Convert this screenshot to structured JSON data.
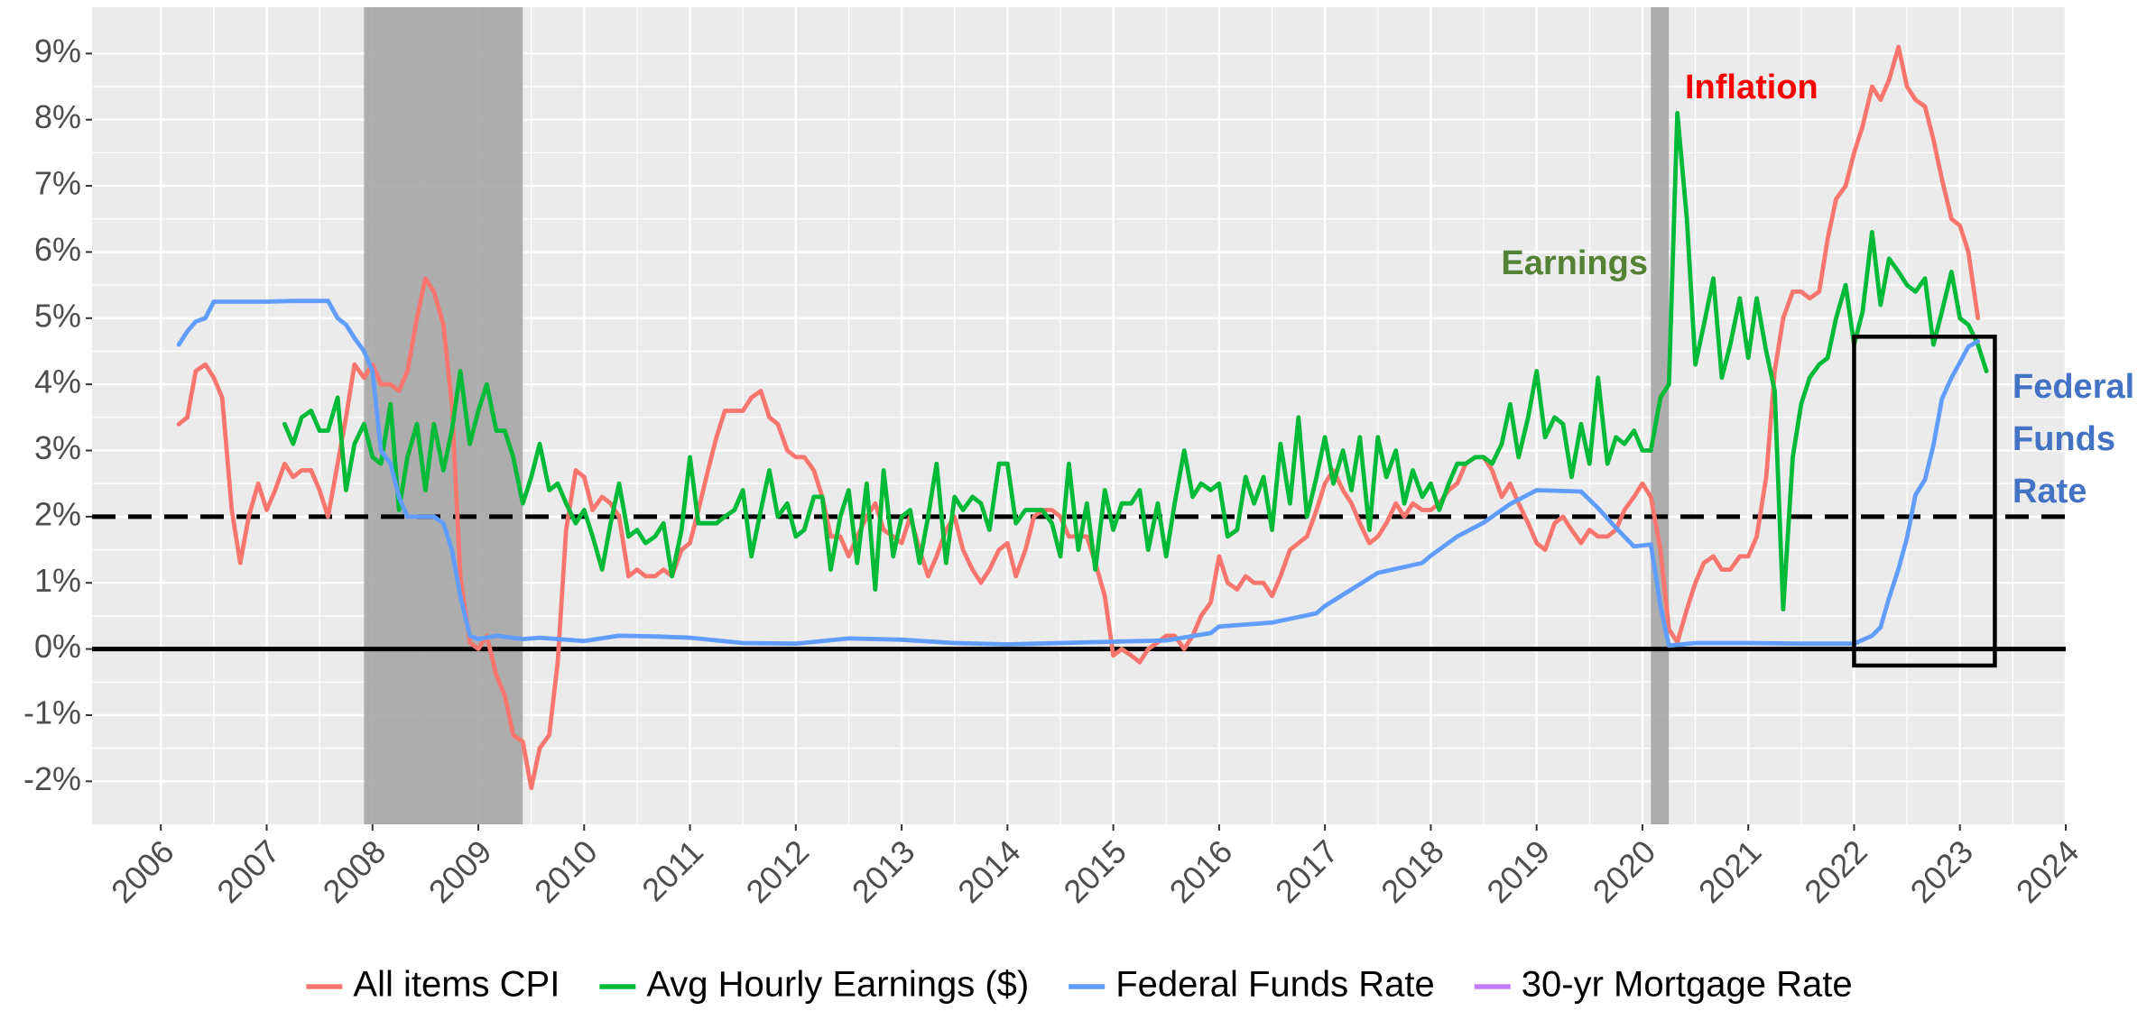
{
  "chart_data": {
    "type": "line",
    "xlim": [
      2005.35,
      2024.0
    ],
    "ylim": [
      -2.65,
      9.7
    ],
    "xticks": [
      2006,
      2007,
      2008,
      2009,
      2010,
      2011,
      2012,
      2013,
      2014,
      2015,
      2016,
      2017,
      2018,
      2019,
      2020,
      2021,
      2022,
      2023,
      2024
    ],
    "yticks": [
      {
        "value": -2,
        "label": "-2%"
      },
      {
        "value": -1,
        "label": "-1%"
      },
      {
        "value": 0,
        "label": "0%"
      },
      {
        "value": 1,
        "label": "1%"
      },
      {
        "value": 2,
        "label": "2%"
      },
      {
        "value": 3,
        "label": "3%"
      },
      {
        "value": 4,
        "label": "4%"
      },
      {
        "value": 5,
        "label": "5%"
      },
      {
        "value": 6,
        "label": "6%"
      },
      {
        "value": 7,
        "label": "7%"
      },
      {
        "value": 8,
        "label": "8%"
      },
      {
        "value": 9,
        "label": "9%"
      }
    ],
    "grid": true,
    "legend": "bottom",
    "shaded_periods": [
      [
        2007.92,
        2009.42
      ],
      [
        2020.08,
        2020.25
      ]
    ],
    "reference_lines": [
      {
        "value": 2,
        "style": "dashed"
      },
      {
        "value": 0,
        "style": "solid"
      }
    ],
    "highlight_box": {
      "xlim": [
        2022.0,
        2023.33
      ],
      "ylim": [
        -0.25,
        4.72
      ]
    },
    "annotations": [
      {
        "lines": [
          "Inflation"
        ],
        "color": "#FF0000"
      },
      {
        "lines": [
          "Earnings"
        ],
        "color": "#548235"
      },
      {
        "lines": [
          "Federal",
          "Funds",
          "Rate"
        ],
        "color": "#4472C4"
      }
    ],
    "series": [
      {
        "name": "All items CPI",
        "color": "#F8766D",
        "x": [
          2006.17,
          2006.25,
          2006.33,
          2006.42,
          2006.5,
          2006.58,
          2006.67,
          2006.75,
          2006.83,
          2006.92,
          2007.0,
          2007.08,
          2007.17,
          2007.25,
          2007.33,
          2007.42,
          2007.5,
          2007.58,
          2007.67,
          2007.75,
          2007.83,
          2007.92,
          2008.0,
          2008.08,
          2008.17,
          2008.25,
          2008.33,
          2008.42,
          2008.5,
          2008.58,
          2008.67,
          2008.75,
          2008.83,
          2008.92,
          2009.0,
          2009.08,
          2009.17,
          2009.25,
          2009.33,
          2009.42,
          2009.5,
          2009.58,
          2009.67,
          2009.75,
          2009.83,
          2009.92,
          2010.0,
          2010.08,
          2010.17,
          2010.25,
          2010.33,
          2010.42,
          2010.5,
          2010.58,
          2010.67,
          2010.75,
          2010.83,
          2010.92,
          2011.0,
          2011.08,
          2011.17,
          2011.25,
          2011.33,
          2011.42,
          2011.5,
          2011.58,
          2011.67,
          2011.75,
          2011.83,
          2011.92,
          2012.0,
          2012.08,
          2012.17,
          2012.25,
          2012.33,
          2012.42,
          2012.5,
          2012.58,
          2012.67,
          2012.75,
          2012.83,
          2012.92,
          2013.0,
          2013.08,
          2013.17,
          2013.25,
          2013.33,
          2013.42,
          2013.5,
          2013.58,
          2013.67,
          2013.75,
          2013.83,
          2013.92,
          2014.0,
          2014.08,
          2014.17,
          2014.25,
          2014.33,
          2014.42,
          2014.5,
          2014.58,
          2014.67,
          2014.75,
          2014.83,
          2014.92,
          2015.0,
          2015.08,
          2015.17,
          2015.25,
          2015.33,
          2015.42,
          2015.5,
          2015.58,
          2015.67,
          2015.75,
          2015.83,
          2015.92,
          2016.0,
          2016.08,
          2016.17,
          2016.25,
          2016.33,
          2016.42,
          2016.5,
          2016.58,
          2016.67,
          2016.75,
          2016.83,
          2016.92,
          2017.0,
          2017.08,
          2017.17,
          2017.25,
          2017.33,
          2017.42,
          2017.5,
          2017.58,
          2017.67,
          2017.75,
          2017.83,
          2017.92,
          2018.0,
          2018.08,
          2018.17,
          2018.25,
          2018.33,
          2018.42,
          2018.5,
          2018.58,
          2018.67,
          2018.75,
          2018.83,
          2018.92,
          2019.0,
          2019.08,
          2019.17,
          2019.25,
          2019.33,
          2019.42,
          2019.5,
          2019.58,
          2019.67,
          2019.75,
          2019.83,
          2019.92,
          2020.0,
          2020.08,
          2020.17,
          2020.25,
          2020.33,
          2020.42,
          2020.5,
          2020.58,
          2020.67,
          2020.75,
          2020.83,
          2020.92,
          2021.0,
          2021.08,
          2021.17,
          2021.25,
          2021.33,
          2021.42,
          2021.5,
          2021.58,
          2021.67,
          2021.75,
          2021.83,
          2021.92,
          2022.0,
          2022.08,
          2022.17,
          2022.25,
          2022.33,
          2022.42,
          2022.5,
          2022.58,
          2022.67,
          2022.75,
          2022.83,
          2022.92,
          2023.0,
          2023.08,
          2023.17
        ],
        "values": [
          3.4,
          3.5,
          4.2,
          4.3,
          4.1,
          3.8,
          2.1,
          1.3,
          2.0,
          2.5,
          2.1,
          2.4,
          2.8,
          2.6,
          2.7,
          2.7,
          2.4,
          2.0,
          2.8,
          3.5,
          4.3,
          4.1,
          4.3,
          4.0,
          4.0,
          3.9,
          4.2,
          5.0,
          5.6,
          5.4,
          4.9,
          3.7,
          1.1,
          0.1,
          0.0,
          0.2,
          -0.4,
          -0.7,
          -1.3,
          -1.4,
          -2.1,
          -1.5,
          -1.3,
          -0.2,
          1.8,
          2.7,
          2.6,
          2.1,
          2.3,
          2.2,
          2.0,
          1.1,
          1.2,
          1.1,
          1.1,
          1.2,
          1.1,
          1.5,
          1.6,
          2.1,
          2.7,
          3.2,
          3.6,
          3.6,
          3.6,
          3.8,
          3.9,
          3.5,
          3.4,
          3.0,
          2.9,
          2.9,
          2.7,
          2.3,
          1.7,
          1.7,
          1.4,
          1.7,
          2.0,
          2.2,
          1.8,
          1.7,
          1.6,
          2.0,
          1.5,
          1.1,
          1.4,
          1.8,
          2.0,
          1.5,
          1.2,
          1.0,
          1.2,
          1.5,
          1.6,
          1.1,
          1.5,
          2.0,
          2.1,
          2.1,
          2.0,
          1.7,
          1.7,
          1.7,
          1.3,
          0.8,
          -0.1,
          0.0,
          -0.1,
          -0.2,
          0.0,
          0.1,
          0.2,
          0.2,
          0.0,
          0.2,
          0.5,
          0.7,
          1.4,
          1.0,
          0.9,
          1.1,
          1.0,
          1.0,
          0.8,
          1.1,
          1.5,
          1.6,
          1.7,
          2.1,
          2.5,
          2.7,
          2.4,
          2.2,
          1.9,
          1.6,
          1.7,
          1.9,
          2.2,
          2.0,
          2.2,
          2.1,
          2.1,
          2.2,
          2.4,
          2.5,
          2.8,
          2.9,
          2.9,
          2.7,
          2.3,
          2.5,
          2.2,
          1.9,
          1.6,
          1.5,
          1.9,
          2.0,
          1.8,
          1.6,
          1.8,
          1.7,
          1.7,
          1.8,
          2.1,
          2.3,
          2.5,
          2.3,
          1.5,
          0.3,
          0.1,
          0.6,
          1.0,
          1.3,
          1.4,
          1.2,
          1.2,
          1.4,
          1.4,
          1.7,
          2.6,
          4.2,
          5.0,
          5.4,
          5.4,
          5.3,
          5.4,
          6.2,
          6.8,
          7.0,
          7.5,
          7.9,
          8.5,
          8.3,
          8.6,
          9.1,
          8.5,
          8.3,
          8.2,
          7.7,
          7.1,
          6.5,
          6.4,
          6.0,
          5.0
        ]
      },
      {
        "name": "Avg Hourly Earnings ($)",
        "color": "#00BA38",
        "x": [
          2007.17,
          2007.25,
          2007.33,
          2007.42,
          2007.5,
          2007.58,
          2007.67,
          2007.75,
          2007.83,
          2007.92,
          2008.0,
          2008.08,
          2008.17,
          2008.25,
          2008.33,
          2008.42,
          2008.5,
          2008.58,
          2008.67,
          2008.75,
          2008.83,
          2008.92,
          2009.0,
          2009.08,
          2009.17,
          2009.25,
          2009.33,
          2009.42,
          2009.5,
          2009.58,
          2009.67,
          2009.75,
          2009.83,
          2009.92,
          2010.0,
          2010.08,
          2010.17,
          2010.25,
          2010.33,
          2010.42,
          2010.5,
          2010.58,
          2010.67,
          2010.75,
          2010.83,
          2010.92,
          2011.0,
          2011.08,
          2011.17,
          2011.25,
          2011.33,
          2011.42,
          2011.5,
          2011.58,
          2011.67,
          2011.75,
          2011.83,
          2011.92,
          2012.0,
          2012.08,
          2012.17,
          2012.25,
          2012.33,
          2012.42,
          2012.5,
          2012.58,
          2012.67,
          2012.75,
          2012.83,
          2012.92,
          2013.0,
          2013.08,
          2013.17,
          2013.25,
          2013.33,
          2013.42,
          2013.5,
          2013.58,
          2013.67,
          2013.75,
          2013.83,
          2013.92,
          2014.0,
          2014.08,
          2014.17,
          2014.25,
          2014.33,
          2014.42,
          2014.5,
          2014.58,
          2014.67,
          2014.75,
          2014.83,
          2014.92,
          2015.0,
          2015.08,
          2015.17,
          2015.25,
          2015.33,
          2015.42,
          2015.5,
          2015.58,
          2015.67,
          2015.75,
          2015.83,
          2015.92,
          2016.0,
          2016.08,
          2016.17,
          2016.25,
          2016.33,
          2016.42,
          2016.5,
          2016.58,
          2016.67,
          2016.75,
          2016.83,
          2016.92,
          2017.0,
          2017.08,
          2017.17,
          2017.25,
          2017.33,
          2017.42,
          2017.5,
          2017.58,
          2017.67,
          2017.75,
          2017.83,
          2017.92,
          2018.0,
          2018.08,
          2018.17,
          2018.25,
          2018.33,
          2018.42,
          2018.5,
          2018.58,
          2018.67,
          2018.75,
          2018.83,
          2018.92,
          2019.0,
          2019.08,
          2019.17,
          2019.25,
          2019.33,
          2019.42,
          2019.5,
          2019.58,
          2019.67,
          2019.75,
          2019.83,
          2019.92,
          2020.0,
          2020.08,
          2020.17,
          2020.25,
          2020.33,
          2020.42,
          2020.5,
          2020.58,
          2020.67,
          2020.75,
          2020.83,
          2020.92,
          2021.0,
          2021.08,
          2021.17,
          2021.25,
          2021.33,
          2021.42,
          2021.5,
          2021.58,
          2021.67,
          2021.75,
          2021.83,
          2021.92,
          2022.0,
          2022.08,
          2022.17,
          2022.25,
          2022.33,
          2022.42,
          2022.5,
          2022.58,
          2022.67,
          2022.75,
          2022.83,
          2022.92,
          2023.0,
          2023.08,
          2023.17,
          2023.25
        ],
        "values": [
          3.4,
          3.1,
          3.5,
          3.6,
          3.3,
          3.3,
          3.8,
          2.4,
          3.1,
          3.4,
          2.9,
          2.8,
          3.7,
          2.1,
          2.9,
          3.4,
          2.4,
          3.4,
          2.7,
          3.3,
          4.2,
          3.1,
          3.6,
          4.0,
          3.3,
          3.3,
          2.9,
          2.2,
          2.6,
          3.1,
          2.4,
          2.5,
          2.2,
          1.9,
          2.1,
          1.7,
          1.2,
          1.9,
          2.5,
          1.7,
          1.8,
          1.6,
          1.7,
          1.9,
          1.1,
          1.8,
          2.9,
          1.9,
          1.9,
          1.9,
          2.0,
          2.1,
          2.4,
          1.4,
          2.1,
          2.7,
          2.0,
          2.2,
          1.7,
          1.8,
          2.3,
          2.3,
          1.2,
          2.0,
          2.4,
          1.3,
          2.5,
          0.9,
          2.7,
          1.4,
          2.0,
          2.1,
          1.3,
          2.0,
          2.8,
          1.3,
          2.3,
          2.1,
          2.3,
          2.2,
          1.8,
          2.8,
          2.8,
          1.9,
          2.1,
          2.1,
          2.1,
          1.9,
          1.4,
          2.8,
          1.5,
          2.2,
          1.2,
          2.4,
          1.8,
          2.2,
          2.2,
          2.4,
          1.5,
          2.2,
          1.4,
          2.2,
          3.0,
          2.3,
          2.5,
          2.4,
          2.5,
          1.7,
          1.8,
          2.6,
          2.2,
          2.6,
          1.8,
          3.1,
          2.2,
          3.5,
          2.0,
          2.6,
          3.2,
          2.5,
          3.0,
          2.4,
          3.2,
          1.8,
          3.2,
          2.6,
          3.0,
          2.2,
          2.7,
          2.3,
          2.5,
          2.1,
          2.5,
          2.8,
          2.8,
          2.9,
          2.9,
          2.8,
          3.1,
          3.7,
          2.9,
          3.5,
          4.2,
          3.2,
          3.5,
          3.4,
          2.6,
          3.4,
          2.8,
          4.1,
          2.8,
          3.2,
          3.1,
          3.3,
          3.0,
          3.0,
          3.8,
          4.0,
          8.1,
          6.5,
          4.3,
          4.9,
          5.6,
          4.1,
          4.6,
          5.3,
          4.4,
          5.3,
          4.5,
          3.9,
          0.6,
          2.9,
          3.7,
          4.1,
          4.3,
          4.4,
          5.0,
          5.5,
          4.6,
          5.1,
          6.3,
          5.2,
          5.9,
          5.7,
          5.5,
          5.4,
          5.6,
          4.6,
          5.1,
          5.7,
          5.0,
          4.9,
          4.6,
          4.2
        ]
      },
      {
        "name": "Federal Funds Rate",
        "color": "#619CFF",
        "x": [
          2006.17,
          2006.25,
          2006.33,
          2006.42,
          2006.5,
          2006.67,
          2007.0,
          2007.25,
          2007.58,
          2007.67,
          2007.75,
          2007.83,
          2007.92,
          2008.0,
          2008.08,
          2008.17,
          2008.25,
          2008.33,
          2008.42,
          2008.58,
          2008.67,
          2008.75,
          2008.83,
          2008.92,
          2009.0,
          2009.17,
          2009.42,
          2009.58,
          2010.0,
          2010.33,
          2010.67,
          2011.0,
          2011.5,
          2012.0,
          2012.5,
          2013.0,
          2013.5,
          2014.0,
          2014.5,
          2015.0,
          2015.5,
          2015.92,
          2016.0,
          2016.25,
          2016.5,
          2016.92,
          2017.0,
          2017.25,
          2017.5,
          2017.92,
          2018.0,
          2018.25,
          2018.5,
          2018.75,
          2019.0,
          2019.42,
          2019.58,
          2019.75,
          2019.92,
          2020.08,
          2020.17,
          2020.25,
          2020.5,
          2021.0,
          2021.5,
          2022.0,
          2022.17,
          2022.25,
          2022.33,
          2022.42,
          2022.5,
          2022.58,
          2022.67,
          2022.75,
          2022.83,
          2022.92,
          2023.0,
          2023.08,
          2023.17
        ],
        "values": [
          4.6,
          4.8,
          4.95,
          5.0,
          5.25,
          5.25,
          5.25,
          5.26,
          5.26,
          5.0,
          4.9,
          4.7,
          4.5,
          4.2,
          3.0,
          2.8,
          2.3,
          2.0,
          2.0,
          2.0,
          1.9,
          1.5,
          0.8,
          0.2,
          0.15,
          0.2,
          0.15,
          0.17,
          0.12,
          0.2,
          0.19,
          0.17,
          0.09,
          0.08,
          0.16,
          0.14,
          0.09,
          0.07,
          0.09,
          0.11,
          0.13,
          0.24,
          0.34,
          0.37,
          0.4,
          0.54,
          0.65,
          0.9,
          1.15,
          1.3,
          1.41,
          1.7,
          1.91,
          2.19,
          2.4,
          2.38,
          2.13,
          1.83,
          1.55,
          1.58,
          0.65,
          0.05,
          0.09,
          0.09,
          0.08,
          0.08,
          0.2,
          0.33,
          0.77,
          1.21,
          1.68,
          2.33,
          2.56,
          3.08,
          3.78,
          4.1,
          4.33,
          4.57,
          4.65
        ]
      },
      {
        "name": "30-yr Mortgage Rate",
        "color": "#C77CFF",
        "x": [],
        "values": []
      }
    ]
  }
}
